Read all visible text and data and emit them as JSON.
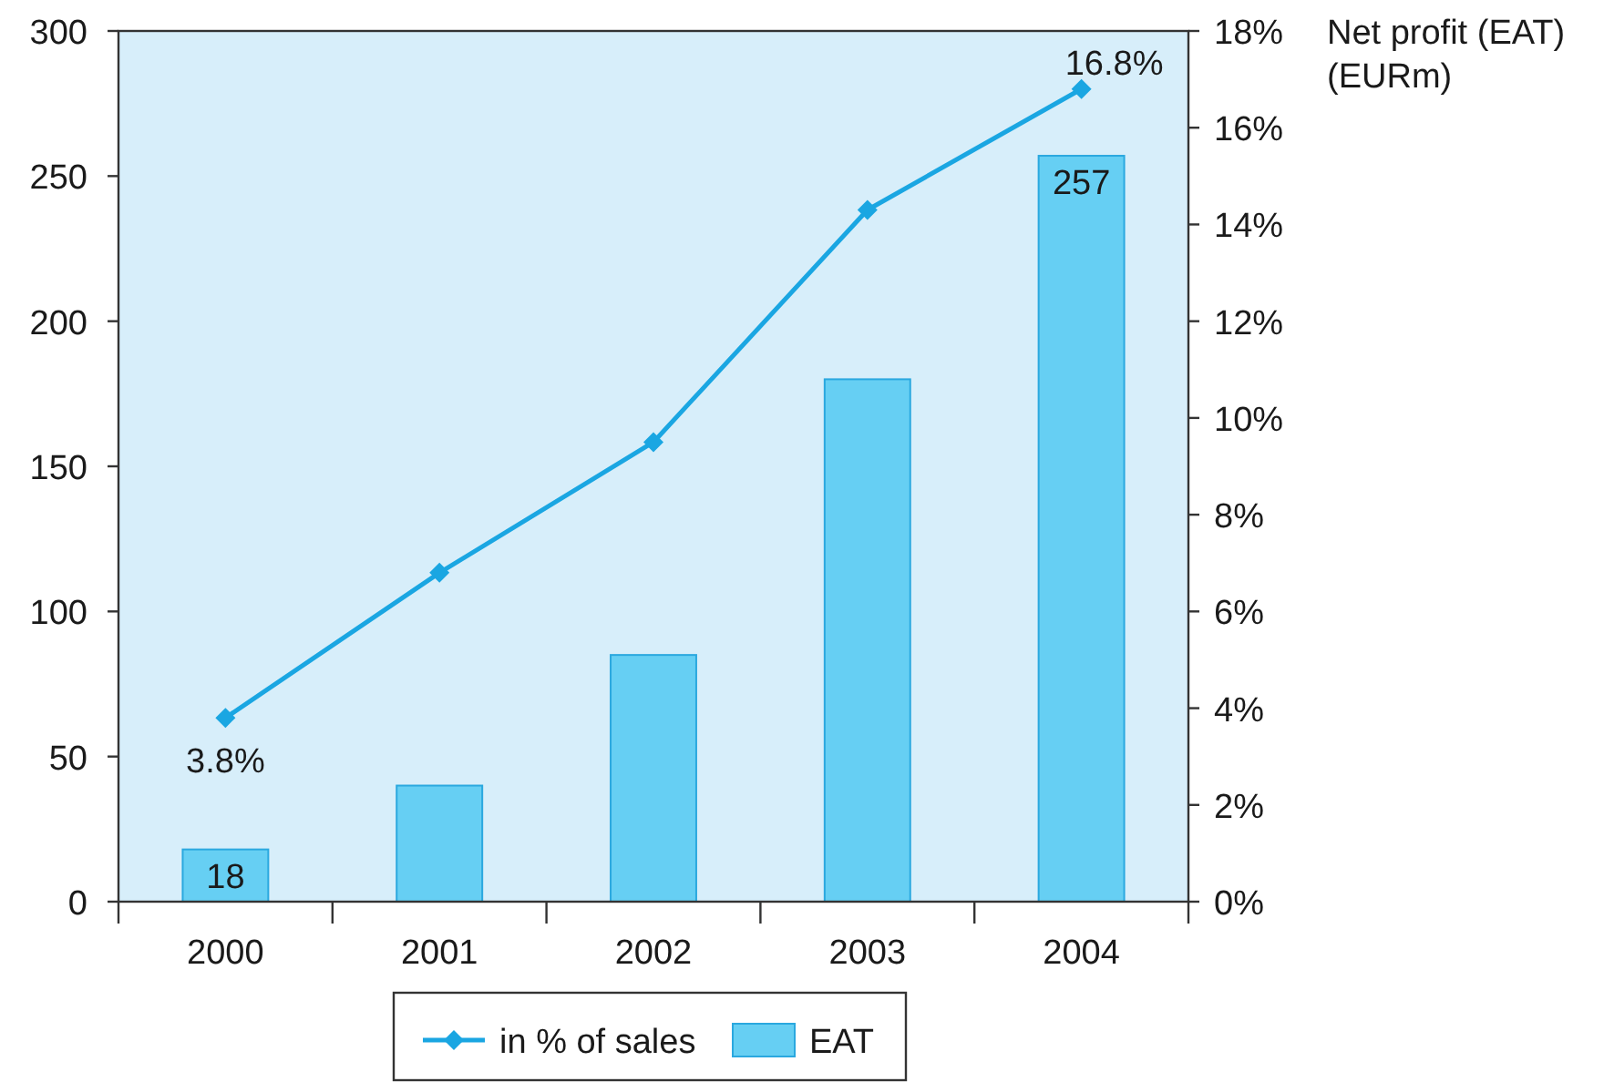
{
  "chart_data": {
    "type": "bar",
    "title": "Net profit (EAT) (EURm)",
    "categories": [
      "2000",
      "2001",
      "2002",
      "2003",
      "2004"
    ],
    "series": [
      {
        "name": "in % of sales",
        "type": "line",
        "axis": "y2",
        "color": "#1aa6e2",
        "values": [
          3.8,
          6.8,
          9.5,
          14.3,
          16.8
        ],
        "value_labels": [
          "3.8%",
          null,
          null,
          null,
          "16.8%"
        ]
      },
      {
        "name": "EAT",
        "color": "#66cff3",
        "values": [
          18,
          40,
          85,
          180,
          257
        ],
        "value_labels": [
          "18",
          null,
          null,
          null,
          "257"
        ]
      }
    ],
    "ylim": [
      0,
      300
    ],
    "yticks": [
      0,
      50,
      100,
      150,
      200,
      250,
      300
    ],
    "y2lim": [
      0,
      18
    ],
    "y2ticks": [
      {
        "value": 0,
        "label": "0%"
      },
      {
        "value": 2,
        "label": "2%"
      },
      {
        "value": 4,
        "label": "4%"
      },
      {
        "value": 6,
        "label": "6%"
      },
      {
        "value": 8,
        "label": "8%"
      },
      {
        "value": 10,
        "label": "10%"
      },
      {
        "value": 12,
        "label": "12%"
      },
      {
        "value": 14,
        "label": "14%"
      },
      {
        "value": 16,
        "label": "16%"
      },
      {
        "value": 18,
        "label": "18%"
      }
    ],
    "marker": "diamond",
    "legend": "bottom",
    "grid": false
  }
}
